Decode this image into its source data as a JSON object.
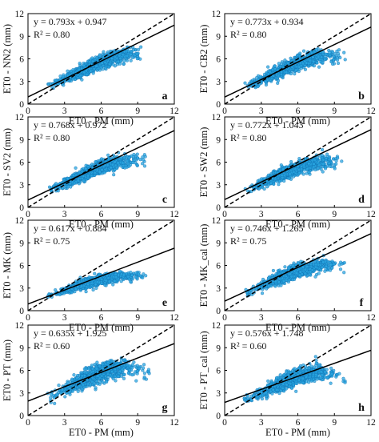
{
  "chart_data": [
    {
      "type": "scatter",
      "panel_label": "a",
      "xlabel": "ET0 - PM (mm)",
      "ylabel": "ET0 - NN2 (mm)",
      "equation": "y = 0.793x + 0.947",
      "r2": "R² = 0.80",
      "slope": 0.793,
      "intercept": 0.947,
      "xlim": [
        0,
        12
      ],
      "ylim": [
        0,
        12
      ],
      "ticks": [
        "0",
        "3",
        "6",
        "9",
        "12"
      ],
      "cloud": {
        "x_range": [
          1.6,
          9.3
        ],
        "y_at_x": [
          [
            2,
            2.6
          ],
          [
            4,
            4.1
          ],
          [
            6,
            5.6
          ],
          [
            8,
            6.6
          ],
          [
            9,
            6.8
          ]
        ],
        "spread": 0.8
      }
    },
    {
      "type": "scatter",
      "panel_label": "b",
      "xlabel": "ET0 - PM (mm)",
      "ylabel": "ET0 - CB2 (mm)",
      "equation": "y = 0.773x + 0.934",
      "r2": "R² = 0.80",
      "slope": 0.773,
      "intercept": 0.934,
      "xlim": [
        0,
        12
      ],
      "ylim": [
        0,
        12
      ],
      "ticks": [
        "0",
        "3",
        "6",
        "9",
        "12"
      ],
      "cloud": {
        "x_range": [
          1.6,
          10.0
        ],
        "y_at_x": [
          [
            2,
            2.5
          ],
          [
            4,
            4.0
          ],
          [
            6,
            5.5
          ],
          [
            8,
            6.3
          ],
          [
            10,
            6.6
          ]
        ],
        "spread": 0.85
      }
    },
    {
      "type": "scatter",
      "panel_label": "c",
      "xlabel": "ET0 - PM (mm)",
      "ylabel": "ET0 - SV2 (mm)",
      "equation": "y = 0.768x + 0.972",
      "r2": "R² = 0.80",
      "slope": 0.768,
      "intercept": 0.972,
      "xlim": [
        0,
        12
      ],
      "ylim": [
        0,
        12
      ],
      "ticks": [
        "0",
        "3",
        "6",
        "9",
        "12"
      ],
      "cloud": {
        "x_range": [
          1.6,
          9.9
        ],
        "y_at_x": [
          [
            2,
            2.4
          ],
          [
            4,
            3.9
          ],
          [
            6,
            5.4
          ],
          [
            8,
            6.2
          ],
          [
            10,
            6.4
          ]
        ],
        "spread": 0.8
      }
    },
    {
      "type": "scatter",
      "panel_label": "d",
      "xlabel": "ET0 - PM (mm)",
      "ylabel": "ET0 - SW2 (mm)",
      "equation": "y = 0.772x + 1.043",
      "r2": "R² = 0.80",
      "slope": 0.772,
      "intercept": 1.043,
      "xlim": [
        0,
        12
      ],
      "ylim": [
        0,
        12
      ],
      "ticks": [
        "0",
        "3",
        "6",
        "9",
        "12"
      ],
      "cloud": {
        "x_range": [
          1.6,
          10.0
        ],
        "y_at_x": [
          [
            2,
            2.4
          ],
          [
            4,
            3.9
          ],
          [
            6,
            5.3
          ],
          [
            8,
            6.1
          ],
          [
            10,
            6.2
          ]
        ],
        "spread": 0.8
      }
    },
    {
      "type": "scatter",
      "panel_label": "e",
      "xlabel": "ET0 - PM (mm)",
      "ylabel": "ET0 - MK (mm)",
      "equation": "y = 0.617x + 0.884",
      "r2": "R² = 0.75",
      "slope": 0.617,
      "intercept": 0.884,
      "xlim": [
        0,
        12
      ],
      "ylim": [
        0,
        12
      ],
      "ticks": [
        "0",
        "3",
        "6",
        "9",
        "12"
      ],
      "cloud": {
        "x_range": [
          1.6,
          9.9
        ],
        "y_at_x": [
          [
            2,
            2.0
          ],
          [
            4,
            3.3
          ],
          [
            6,
            4.2
          ],
          [
            8,
            4.6
          ],
          [
            10,
            4.5
          ]
        ],
        "spread": 0.6
      }
    },
    {
      "type": "scatter",
      "panel_label": "f",
      "xlabel": "ET0 - PM (mm)",
      "ylabel": "ET0 - MK_cal (mm)",
      "equation": "y = 0.746x + 1.265",
      "r2": "R² = 0.75",
      "slope": 0.746,
      "intercept": 1.265,
      "xlim": [
        0,
        12
      ],
      "ylim": [
        0,
        12
      ],
      "ticks": [
        "0",
        "3",
        "6",
        "9",
        "12"
      ],
      "cloud": {
        "x_range": [
          1.6,
          10.0
        ],
        "y_at_x": [
          [
            2,
            2.4
          ],
          [
            4,
            4.0
          ],
          [
            6,
            5.3
          ],
          [
            8,
            6.0
          ],
          [
            10,
            6.0
          ]
        ],
        "spread": 0.75
      }
    },
    {
      "type": "scatter",
      "panel_label": "g",
      "xlabel": "ET0 - PM (mm)",
      "ylabel": "ET0 - PT (mm)",
      "equation": "y = 0.635x + 1.925",
      "r2": "R² = 0.60",
      "slope": 0.635,
      "intercept": 1.925,
      "xlim": [
        0,
        12
      ],
      "ylim": [
        0,
        12
      ],
      "ticks": [
        "0",
        "3",
        "6",
        "9",
        "12"
      ],
      "cloud": {
        "x_range": [
          1.6,
          10.0
        ],
        "y_at_x": [
          [
            2,
            2.6
          ],
          [
            4,
            4.3
          ],
          [
            6,
            5.8
          ],
          [
            8,
            6.4
          ],
          [
            10,
            5.8
          ]
        ],
        "spread": 1.0
      }
    },
    {
      "type": "scatter",
      "panel_label": "h",
      "xlabel": "ET0 - PM (mm)",
      "ylabel": "ET0 - PT_cal (mm)",
      "equation": "y = 0.576x + 1.748",
      "r2": "R² = 0.60",
      "slope": 0.576,
      "intercept": 1.748,
      "xlim": [
        0,
        12
      ],
      "ylim": [
        0,
        12
      ],
      "ticks": [
        "0",
        "3",
        "6",
        "9",
        "12"
      ],
      "cloud": {
        "x_range": [
          1.6,
          10.0
        ],
        "y_at_x": [
          [
            2,
            2.2
          ],
          [
            4,
            3.8
          ],
          [
            6,
            5.2
          ],
          [
            8,
            5.7
          ],
          [
            10,
            5.2
          ]
        ],
        "spread": 0.9
      }
    }
  ],
  "colors": {
    "points_fill": "#29a6e0",
    "points_stroke": "#0d6fb0",
    "fit_line": "#000000",
    "one_to_one": "#000000"
  }
}
